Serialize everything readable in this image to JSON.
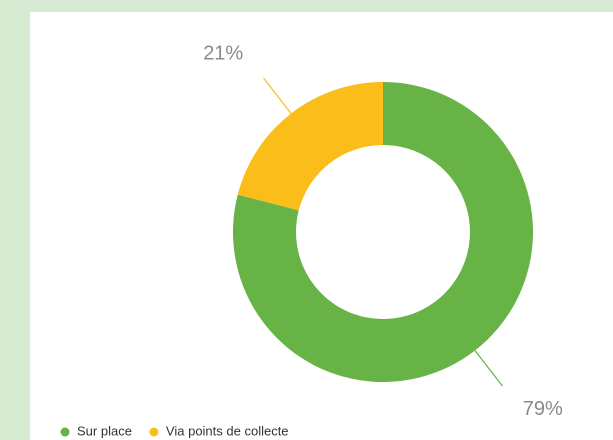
{
  "chart_data": {
    "type": "donut",
    "categories": [
      "Sur place",
      "Via points de collecte"
    ],
    "values": [
      79,
      21
    ],
    "value_labels": [
      "79%",
      "21%"
    ],
    "colors": [
      "#67b346",
      "#fbbd19"
    ],
    "legend": "bottom-left"
  }
}
